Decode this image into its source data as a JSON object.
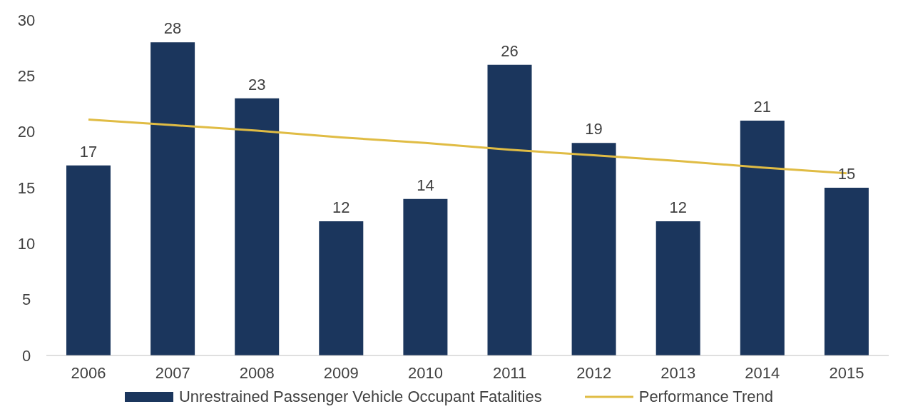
{
  "chart_data": {
    "type": "bar",
    "categories": [
      "2006",
      "2007",
      "2008",
      "2009",
      "2010",
      "2011",
      "2012",
      "2013",
      "2014",
      "2015"
    ],
    "series": [
      {
        "name": "Unrestrained Passenger Vehicle Occupant Fatalities",
        "color": "#1b365d",
        "values": [
          17,
          28,
          23,
          12,
          14,
          26,
          19,
          12,
          21,
          15
        ],
        "value_labels": [
          "17",
          "28",
          "23",
          "12",
          "14",
          "26",
          "19",
          "12",
          "21",
          "15"
        ]
      },
      {
        "name": "Performance Trend",
        "type": "line",
        "color": "#e0bc44",
        "values": [
          21.1,
          20.6,
          20.1,
          19.5,
          19.0,
          18.4,
          17.9,
          17.4,
          16.8,
          16.3
        ]
      }
    ],
    "ylim": [
      0,
      30
    ],
    "yticks": [
      0,
      5,
      10,
      15,
      20,
      25,
      30
    ],
    "legend": "bottom",
    "marker": "none"
  }
}
